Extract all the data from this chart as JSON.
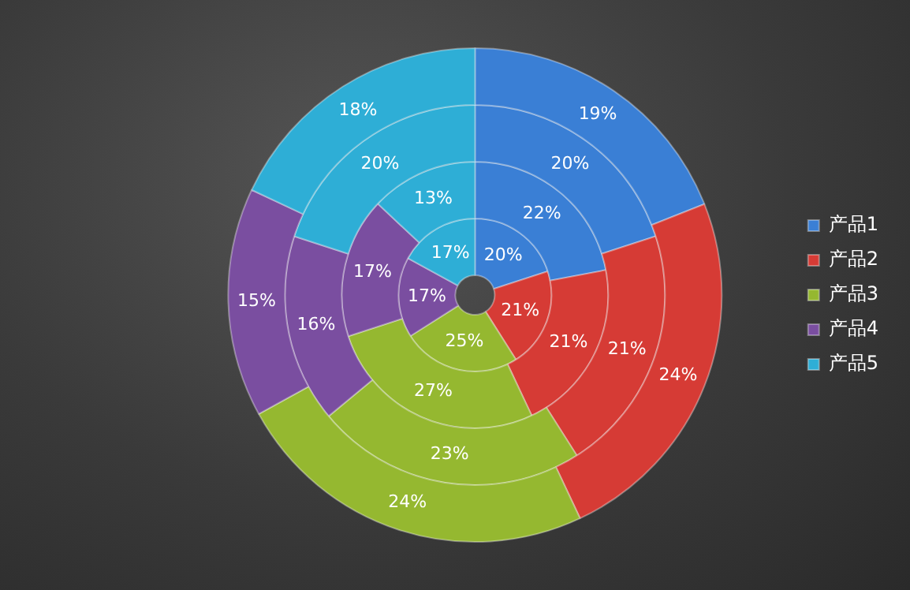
{
  "chart_data": {
    "type": "donut",
    "categories": [
      "产品1",
      "产品2",
      "产品3",
      "产品4",
      "产品5"
    ],
    "colors": [
      "#3a7fd5",
      "#d63b35",
      "#95b830",
      "#7a4ea0",
      "#2eaed6"
    ],
    "series": [
      {
        "values": [
          19,
          24,
          24,
          15,
          18
        ],
        "value_labels": [
          "19%",
          "24%",
          "24%",
          "15%",
          "18%"
        ]
      },
      {
        "values": [
          20,
          21,
          23,
          16,
          20
        ],
        "value_labels": [
          "20%",
          "21%",
          "23%",
          "16%",
          "20%"
        ]
      },
      {
        "values": [
          22,
          21,
          27,
          17,
          13
        ],
        "value_labels": [
          "22%",
          "21%",
          "27%",
          "17%",
          "13%"
        ]
      },
      {
        "values": [
          20,
          21,
          25,
          17,
          17
        ],
        "value_labels": [
          "20%",
          "21%",
          "25%",
          "17%",
          "17%"
        ]
      }
    ],
    "legend": "right"
  }
}
